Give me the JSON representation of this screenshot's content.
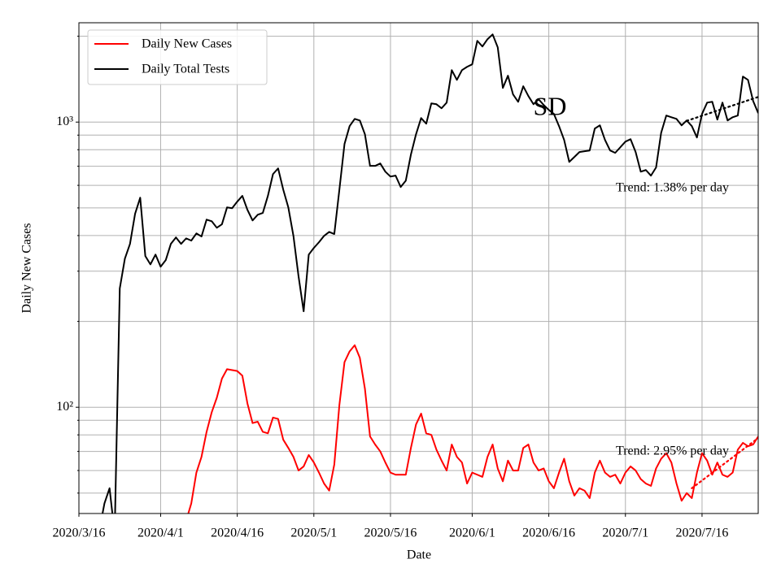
{
  "chart_data": {
    "type": "line",
    "xlabel": "Date",
    "ylabel": "Daily New Cases",
    "log_y": true,
    "grid": true,
    "legend": "upper left",
    "xlim": [
      "2020/3/16",
      "2020/7/27"
    ],
    "xticks": [
      "2020/3/16",
      "2020/4/1",
      "2020/4/16",
      "2020/5/1",
      "2020/5/16",
      "2020/6/1",
      "2020/6/16",
      "2020/7/1",
      "2020/7/16"
    ],
    "ylim": [
      42.4,
      2230
    ],
    "yticks": [
      {
        "value": 100,
        "label": "10²"
      },
      {
        "value": 1000,
        "label": "10³"
      }
    ],
    "minor_yticks": [
      50,
      60,
      70,
      80,
      90,
      200,
      300,
      400,
      500,
      600,
      700,
      800,
      900,
      2000
    ],
    "x": [
      "2020/3/16",
      "2020/3/17",
      "2020/3/18",
      "2020/3/19",
      "2020/3/20",
      "2020/3/21",
      "2020/3/22",
      "2020/3/23",
      "2020/3/24",
      "2020/3/25",
      "2020/3/26",
      "2020/3/27",
      "2020/3/28",
      "2020/3/29",
      "2020/3/30",
      "2020/3/31",
      "2020/4/1",
      "2020/4/2",
      "2020/4/3",
      "2020/4/4",
      "2020/4/5",
      "2020/4/6",
      "2020/4/7",
      "2020/4/8",
      "2020/4/9",
      "2020/4/10",
      "2020/4/11",
      "2020/4/12",
      "2020/4/13",
      "2020/4/14",
      "2020/4/15",
      "2020/4/16",
      "2020/4/17",
      "2020/4/18",
      "2020/4/19",
      "2020/4/20",
      "2020/4/21",
      "2020/4/22",
      "2020/4/23",
      "2020/4/24",
      "2020/4/25",
      "2020/4/26",
      "2020/4/27",
      "2020/4/28",
      "2020/4/29",
      "2020/4/30",
      "2020/5/1",
      "2020/5/2",
      "2020/5/3",
      "2020/5/4",
      "2020/5/5",
      "2020/5/6",
      "2020/5/7",
      "2020/5/8",
      "2020/5/9",
      "2020/5/10",
      "2020/5/11",
      "2020/5/12",
      "2020/5/13",
      "2020/5/14",
      "2020/5/15",
      "2020/5/16",
      "2020/5/17",
      "2020/5/18",
      "2020/5/19",
      "2020/5/20",
      "2020/5/21",
      "2020/5/22",
      "2020/5/23",
      "2020/5/24",
      "2020/5/25",
      "2020/5/26",
      "2020/5/27",
      "2020/5/28",
      "2020/5/29",
      "2020/5/30",
      "2020/5/31",
      "2020/6/1",
      "2020/6/2",
      "2020/6/3",
      "2020/6/4",
      "2020/6/5",
      "2020/6/6",
      "2020/6/7",
      "2020/6/8",
      "2020/6/9",
      "2020/6/10",
      "2020/6/11",
      "2020/6/12",
      "2020/6/13",
      "2020/6/14",
      "2020/6/15",
      "2020/6/16",
      "2020/6/17",
      "2020/6/18",
      "2020/6/19",
      "2020/6/20",
      "2020/6/21",
      "2020/6/22",
      "2020/6/23",
      "2020/6/24",
      "2020/6/25",
      "2020/6/26",
      "2020/6/27",
      "2020/6/28",
      "2020/6/29",
      "2020/6/30",
      "2020/7/1",
      "2020/7/2",
      "2020/7/3",
      "2020/7/4",
      "2020/7/5",
      "2020/7/6",
      "2020/7/7",
      "2020/7/8",
      "2020/7/9",
      "2020/7/10",
      "2020/7/11",
      "2020/7/12",
      "2020/7/13",
      "2020/7/14",
      "2020/7/15",
      "2020/7/16",
      "2020/7/17",
      "2020/7/18",
      "2020/7/19",
      "2020/7/20",
      "2020/7/21",
      "2020/7/22",
      "2020/7/23",
      "2020/7/24",
      "2020/7/25",
      "2020/7/26",
      "2020/7/27"
    ],
    "series": [
      {
        "name": "Daily New Cases",
        "color": "#ff0000",
        "values": [
          null,
          null,
          null,
          null,
          null,
          null,
          null,
          null,
          null,
          null,
          null,
          null,
          null,
          null,
          null,
          null,
          null,
          null,
          null,
          null,
          null,
          40,
          46,
          59,
          67,
          82,
          96,
          108,
          126,
          136,
          135,
          134,
          129,
          103,
          88,
          89,
          82,
          81,
          92,
          91,
          77,
          72,
          67,
          60,
          62,
          68,
          64,
          59,
          54,
          51,
          63,
          102,
          144,
          157,
          165,
          149,
          116,
          79,
          74,
          70,
          64,
          59,
          58,
          58,
          58,
          72,
          87,
          95,
          81,
          80,
          71,
          65,
          60,
          74,
          67,
          64,
          54,
          59,
          58,
          57,
          67,
          74,
          61,
          55,
          65,
          60,
          60,
          72,
          74,
          64,
          60,
          61,
          55,
          52,
          59,
          66,
          55,
          49,
          52,
          51,
          48,
          59,
          65,
          59,
          57,
          58,
          54,
          59,
          62,
          60,
          56,
          54,
          53,
          61,
          66,
          69,
          64,
          54,
          47,
          50,
          48,
          59,
          69,
          65,
          58,
          64,
          58,
          57,
          59,
          71,
          75,
          73,
          74,
          79
        ]
      },
      {
        "name": "Daily Total Tests",
        "color": "#000000",
        "values": [
          null,
          null,
          null,
          null,
          37,
          46,
          52,
          36,
          261,
          332,
          374,
          477,
          543,
          339,
          317,
          343,
          311,
          328,
          374,
          394,
          374,
          391,
          384,
          407,
          397,
          455,
          449,
          426,
          438,
          502,
          499,
          526,
          551,
          492,
          452,
          473,
          480,
          551,
          657,
          688,
          580,
          502,
          399,
          288,
          217,
          343,
          362,
          379,
          399,
          412,
          405,
          580,
          838,
          968,
          1026,
          1013,
          906,
          702,
          702,
          716,
          670,
          644,
          649,
          592,
          623,
          769,
          906,
          1033,
          987,
          1163,
          1155,
          1118,
          1170,
          1521,
          1406,
          1521,
          1562,
          1594,
          1927,
          1841,
          1953,
          2030,
          1828,
          1317,
          1454,
          1250,
          1178,
          1335,
          1234,
          1155,
          1202,
          1148,
          1103,
          1068,
          968,
          866,
          725,
          754,
          785,
          790,
          795,
          949,
          974,
          866,
          795,
          780,
          816,
          854,
          871,
          785,
          670,
          679,
          649,
          693,
          918,
          1054,
          1040,
          1026,
          974,
          1013,
          968,
          883,
          1068,
          1170,
          1178,
          1020,
          1170,
          1013,
          1040,
          1054,
          1444,
          1406,
          1186,
          1075
        ]
      }
    ],
    "trend_lines": [
      {
        "color": "#000000",
        "x": [
          "2020/7/13",
          "2020/7/27"
        ],
        "values": [
          1010,
          1225
        ]
      },
      {
        "color": "#ff0000",
        "x": [
          "2020/7/14",
          "2020/7/27"
        ],
        "values": [
          52,
          78
        ]
      }
    ],
    "annotations": [
      "SD",
      "Trend: 1.38% per day",
      "Trend: 2.95% per day"
    ]
  }
}
